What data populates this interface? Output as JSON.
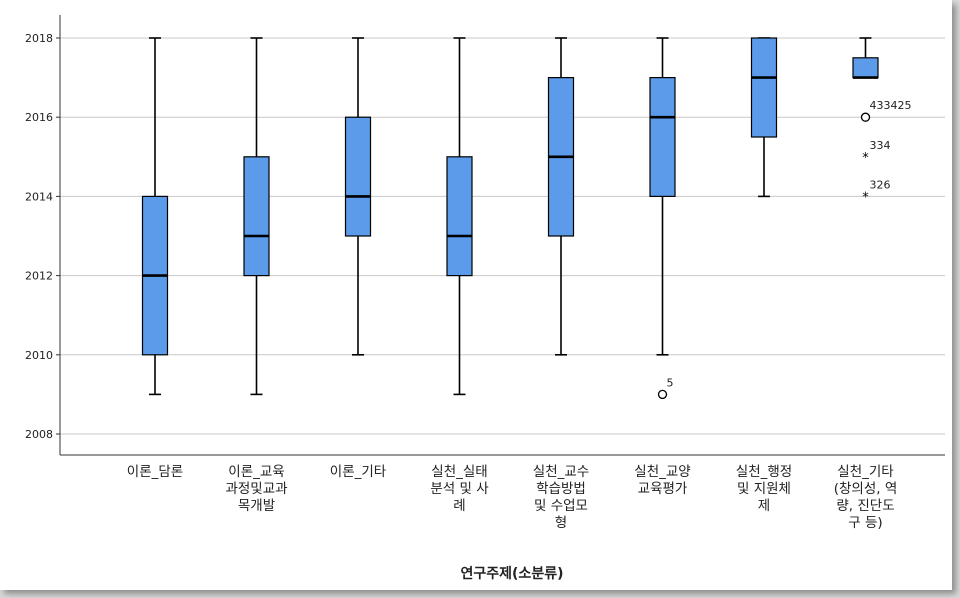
{
  "chart_data": {
    "type": "boxplot",
    "xlabel": "연구주제(소분류)",
    "ylabel": "",
    "ylim": [
      2007.5,
      2018.5
    ],
    "yticks": [
      2008,
      2010,
      2012,
      2014,
      2016,
      2018
    ],
    "grid": true,
    "box_color": "#5b9bea",
    "categories": [
      {
        "label_lines": [
          "이론_담론"
        ],
        "min": 2009,
        "q1": 2010,
        "median": 2012,
        "q3": 2014,
        "max": 2018,
        "outliers": []
      },
      {
        "label_lines": [
          "이론_교육",
          "과정및교과",
          "목개발"
        ],
        "min": 2009,
        "q1": 2012,
        "median": 2013,
        "q3": 2015,
        "max": 2018,
        "outliers": []
      },
      {
        "label_lines": [
          "이론_기타"
        ],
        "min": 2010,
        "q1": 2013,
        "median": 2014,
        "q3": 2016,
        "max": 2018,
        "outliers": []
      },
      {
        "label_lines": [
          "실천_실태",
          "분석 및 사",
          "례"
        ],
        "min": 2009,
        "q1": 2012,
        "median": 2013,
        "q3": 2015,
        "max": 2018,
        "outliers": []
      },
      {
        "label_lines": [
          "실천_교수",
          "학습방법",
          "및 수업모",
          "형"
        ],
        "min": 2010,
        "q1": 2013,
        "median": 2015,
        "q3": 2017,
        "max": 2018,
        "outliers": []
      },
      {
        "label_lines": [
          "실천_교양",
          "교육평가"
        ],
        "min": 2010,
        "q1": 2014,
        "median": 2016,
        "q3": 2017,
        "max": 2018,
        "outliers": [
          {
            "value": 2009,
            "marker": "circle",
            "label": "5"
          }
        ]
      },
      {
        "label_lines": [
          "실천_행정",
          "및 지원체",
          "제"
        ],
        "min": 2014,
        "q1": 2015.5,
        "median": 2017,
        "q3": 2018,
        "max": 2018,
        "outliers": []
      },
      {
        "label_lines": [
          "실천_기타",
          "(창의성, 역",
          "량, 진단도",
          "구 등)"
        ],
        "min": 2017,
        "q1": 2017,
        "median": 2017,
        "q3": 2017.5,
        "max": 2018,
        "outliers": [
          {
            "value": 2016,
            "marker": "circle",
            "label": "433425"
          },
          {
            "value": 2015,
            "marker": "star",
            "label": "334"
          },
          {
            "value": 2014,
            "marker": "star",
            "label": "326"
          }
        ]
      }
    ]
  }
}
